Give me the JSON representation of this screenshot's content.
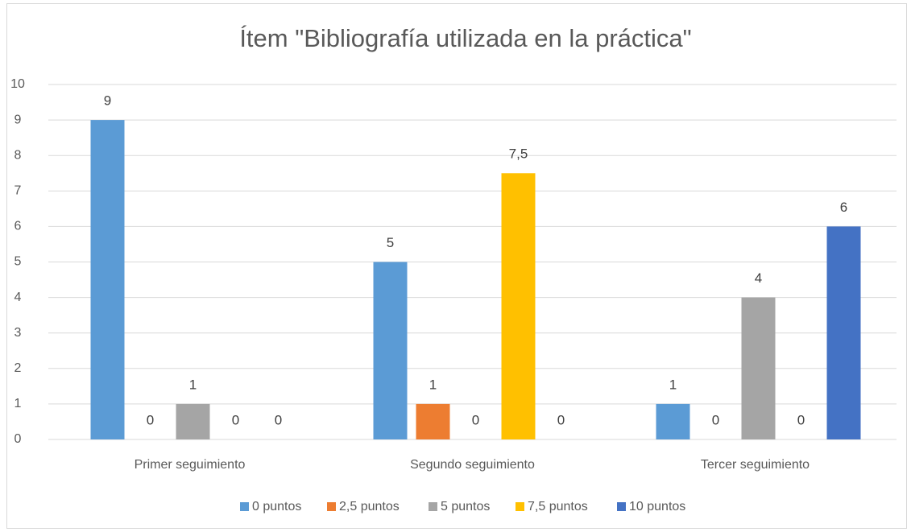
{
  "chart_data": {
    "type": "bar",
    "title": "Ítem \"Bibliografía utilizada en la práctica\"",
    "categories": [
      "Primer seguimiento",
      "Segundo seguimiento",
      "Tercer seguimiento"
    ],
    "series": [
      {
        "name": "0 puntos",
        "color": "#5b9bd5",
        "values": [
          9,
          5,
          1
        ],
        "value_labels": [
          "9",
          "5",
          "1"
        ]
      },
      {
        "name": "2,5 puntos",
        "color": "#ed7d31",
        "values": [
          0,
          1,
          0
        ],
        "value_labels": [
          "0",
          "1",
          "0"
        ]
      },
      {
        "name": "5 puntos",
        "color": "#a5a5a5",
        "values": [
          1,
          0,
          4
        ],
        "value_labels": [
          "1",
          "0",
          "4"
        ]
      },
      {
        "name": "7,5 puntos",
        "color": "#ffc000",
        "values": [
          0,
          7.5,
          0
        ],
        "value_labels": [
          "0",
          "7,5",
          "0"
        ]
      },
      {
        "name": "10 puntos",
        "color": "#4472c4",
        "values": [
          0,
          0,
          6
        ],
        "value_labels": [
          "0",
          "0",
          "6"
        ]
      }
    ],
    "ylim": [
      0,
      10
    ],
    "yticks": [
      0,
      1,
      2,
      3,
      4,
      5,
      6,
      7,
      8,
      9,
      10
    ],
    "grid": true,
    "legend": "bottom"
  }
}
